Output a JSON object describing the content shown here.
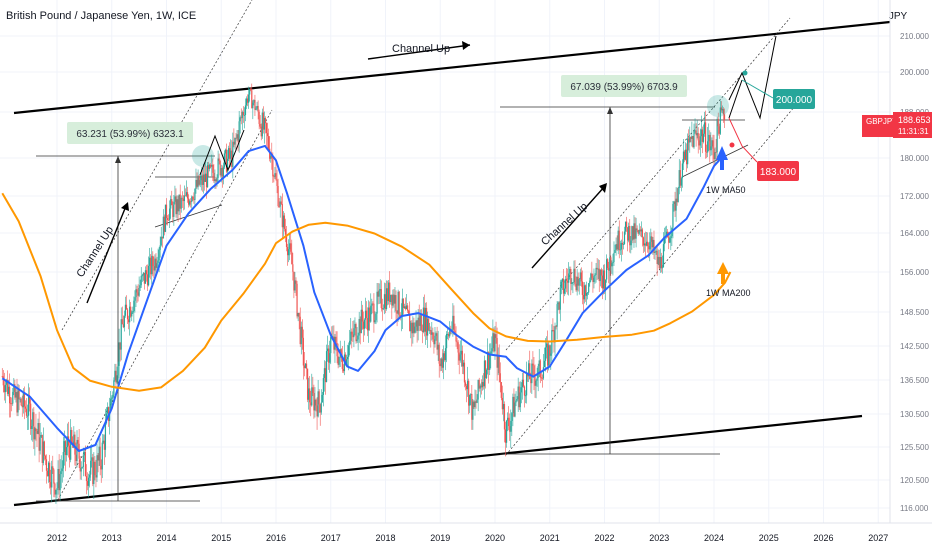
{
  "chart_data": {
    "type": "line",
    "title": "British Pound / Japanese Yen, 1W, ICE",
    "currency": "JPY",
    "symbol": "GBPJPY",
    "last_price": "188.653",
    "countdown": "11:31:31",
    "y_ticks": [
      "210.000",
      "200.000",
      "188.000",
      "180.000",
      "172.000",
      "164.000",
      "156.000",
      "148.500",
      "142.500",
      "136.500",
      "130.500",
      "125.500",
      "120.500",
      "116.000"
    ],
    "x_ticks": [
      "2012",
      "2013",
      "2014",
      "2015",
      "2016",
      "2017",
      "2018",
      "2019",
      "2020",
      "2021",
      "2022",
      "2023",
      "2024",
      "2025",
      "2026",
      "2027"
    ],
    "series": [
      {
        "name": "1W MA50",
        "color": "#2962ff",
        "points": [
          [
            2011.0,
            136.8
          ],
          [
            2011.5,
            133.6
          ],
          [
            2012.0,
            128.4
          ],
          [
            2012.4,
            124.9
          ],
          [
            2012.7,
            125.8
          ],
          [
            2013.0,
            131.5
          ],
          [
            2013.3,
            141.2
          ],
          [
            2013.7,
            152.3
          ],
          [
            2014.0,
            161.4
          ],
          [
            2014.4,
            168.2
          ],
          [
            2014.8,
            173.4
          ],
          [
            2015.2,
            177.4
          ],
          [
            2015.5,
            181.2
          ],
          [
            2015.8,
            182.1
          ],
          [
            2016.0,
            179.5
          ],
          [
            2016.2,
            172.6
          ],
          [
            2016.5,
            161.4
          ],
          [
            2016.7,
            152.2
          ],
          [
            2017.0,
            144.4
          ],
          [
            2017.3,
            138.9
          ],
          [
            2017.5,
            138.1
          ],
          [
            2017.8,
            141.6
          ],
          [
            2018.0,
            145.3
          ],
          [
            2018.3,
            147.8
          ],
          [
            2018.6,
            148.3
          ],
          [
            2019.0,
            146.8
          ],
          [
            2019.3,
            144.4
          ],
          [
            2019.6,
            142.4
          ],
          [
            2019.9,
            141.0
          ],
          [
            2020.2,
            140.6
          ],
          [
            2020.4,
            138.6
          ],
          [
            2020.7,
            137.1
          ],
          [
            2021.0,
            138.9
          ],
          [
            2021.3,
            143.5
          ],
          [
            2021.6,
            148.3
          ],
          [
            2022.0,
            152.5
          ],
          [
            2022.4,
            156.4
          ],
          [
            2022.8,
            159.4
          ],
          [
            2023.1,
            163.1
          ],
          [
            2023.5,
            167.1
          ],
          [
            2023.8,
            173.6
          ],
          [
            2024.0,
            178.3
          ],
          [
            2024.1,
            179.6
          ]
        ]
      },
      {
        "name": "1W MA200",
        "color": "#ff9800",
        "points": [
          [
            2011.0,
            172.6
          ],
          [
            2011.3,
            166.5
          ],
          [
            2011.7,
            155.2
          ],
          [
            2012.0,
            145.3
          ],
          [
            2012.3,
            138.6
          ],
          [
            2012.6,
            136.4
          ],
          [
            2013.0,
            135.3
          ],
          [
            2013.5,
            134.6
          ],
          [
            2013.9,
            135.2
          ],
          [
            2014.3,
            138.1
          ],
          [
            2014.7,
            142.2
          ],
          [
            2015.0,
            147.0
          ],
          [
            2015.4,
            151.9
          ],
          [
            2015.8,
            157.7
          ],
          [
            2016.0,
            161.9
          ],
          [
            2016.3,
            164.3
          ],
          [
            2016.6,
            165.8
          ],
          [
            2016.9,
            166.2
          ],
          [
            2017.3,
            165.6
          ],
          [
            2017.8,
            163.9
          ],
          [
            2018.3,
            161.2
          ],
          [
            2018.8,
            157.5
          ],
          [
            2019.2,
            152.8
          ],
          [
            2019.6,
            148.3
          ],
          [
            2019.9,
            145.6
          ],
          [
            2020.2,
            144.2
          ],
          [
            2020.6,
            143.4
          ],
          [
            2021.0,
            143.3
          ],
          [
            2021.5,
            143.6
          ],
          [
            2022.0,
            144.1
          ],
          [
            2022.5,
            144.5
          ],
          [
            2022.9,
            145.2
          ],
          [
            2023.2,
            146.5
          ],
          [
            2023.6,
            148.6
          ],
          [
            2024.0,
            151.7
          ],
          [
            2024.2,
            154.0
          ],
          [
            2024.3,
            156.0
          ]
        ]
      },
      {
        "name": "GBPJPY",
        "color": "#26a69a",
        "points": [
          [
            2011.0,
            137.2
          ],
          [
            2011.2,
            133.4
          ],
          [
            2011.5,
            131.1
          ],
          [
            2011.8,
            123.4
          ],
          [
            2012.0,
            119.5
          ],
          [
            2012.2,
            126.1
          ],
          [
            2012.4,
            124.2
          ],
          [
            2012.6,
            121.3
          ],
          [
            2012.8,
            123.6
          ],
          [
            2013.0,
            133.6
          ],
          [
            2013.2,
            146.5
          ],
          [
            2013.5,
            153.2
          ],
          [
            2013.8,
            158.5
          ],
          [
            2014.0,
            168.6
          ],
          [
            2014.3,
            170.5
          ],
          [
            2014.6,
            174.5
          ],
          [
            2014.8,
            176.6
          ],
          [
            2015.0,
            178.4
          ],
          [
            2015.2,
            180.2
          ],
          [
            2015.4,
            188.3
          ],
          [
            2015.5,
            193.4
          ],
          [
            2015.7,
            187.0
          ],
          [
            2015.9,
            181.4
          ],
          [
            2016.1,
            168.1
          ],
          [
            2016.3,
            156.9
          ],
          [
            2016.5,
            140.3
          ],
          [
            2016.6,
            133.4
          ],
          [
            2016.8,
            132.3
          ],
          [
            2017.0,
            143.5
          ],
          [
            2017.2,
            139.8
          ],
          [
            2017.5,
            146.3
          ],
          [
            2017.7,
            147.9
          ],
          [
            2017.9,
            150.6
          ],
          [
            2018.1,
            152.3
          ],
          [
            2018.3,
            148.7
          ],
          [
            2018.5,
            145.6
          ],
          [
            2018.7,
            147.6
          ],
          [
            2018.9,
            144.5
          ],
          [
            2019.0,
            139.0
          ],
          [
            2019.2,
            146.3
          ],
          [
            2019.4,
            140.2
          ],
          [
            2019.6,
            130.4
          ],
          [
            2019.8,
            138.3
          ],
          [
            2020.0,
            143.6
          ],
          [
            2020.2,
            127.8
          ],
          [
            2020.4,
            133.3
          ],
          [
            2020.6,
            136.9
          ],
          [
            2020.8,
            137.6
          ],
          [
            2021.0,
            141.7
          ],
          [
            2021.2,
            151.9
          ],
          [
            2021.4,
            156.4
          ],
          [
            2021.6,
            152.7
          ],
          [
            2021.8,
            155.3
          ],
          [
            2022.0,
            155.1
          ],
          [
            2022.2,
            161.9
          ],
          [
            2022.4,
            164.2
          ],
          [
            2022.6,
            163.4
          ],
          [
            2022.8,
            162.7
          ],
          [
            2023.0,
            157.1
          ],
          [
            2023.2,
            164.9
          ],
          [
            2023.4,
            177.6
          ],
          [
            2023.6,
            183.4
          ],
          [
            2023.8,
            184.3
          ],
          [
            2024.0,
            180.9
          ],
          [
            2024.1,
            186.8
          ],
          [
            2024.2,
            188.65
          ]
        ]
      }
    ],
    "annotations": [
      {
        "text": "Channel Up",
        "near": "top center"
      },
      {
        "text": "Channel Up",
        "near": "left channel"
      },
      {
        "text": "Channel Up",
        "near": "right channel"
      },
      {
        "text": "63.231 (53.99%) 6323.1",
        "kind": "measure box"
      },
      {
        "text": "67.039 (53.99%) 6703.9",
        "kind": "measure box"
      },
      {
        "text": "200.000",
        "kind": "target tag"
      },
      {
        "text": "183.000",
        "kind": "target tag"
      },
      {
        "text": "1W MA50",
        "kind": "label"
      },
      {
        "text": "1W MA200",
        "kind": "label"
      }
    ],
    "ylim": [
      115,
      211
    ],
    "xlim": [
      2011.0,
      2027.3
    ],
    "grid": true,
    "colors": {
      "up": "#26a69a",
      "down": "#ef5350",
      "ma50": "#2962ff",
      "ma200": "#ff9800",
      "target_up": "#26a69a",
      "target_down": "#f23645",
      "price_tag": "#f23645"
    }
  }
}
